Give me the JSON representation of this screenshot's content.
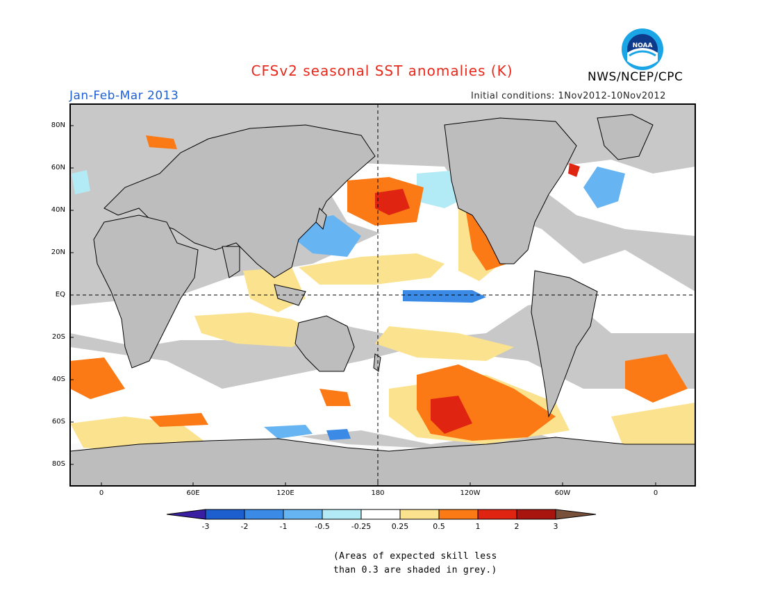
{
  "header": {
    "title": "CFSv2 seasonal SST anomalies (K)",
    "organization": "NWS/NCEP/CPC",
    "season": "Jan-Feb-Mar 2013",
    "initial_conditions": "Initial conditions: 1Nov2012-10Nov2012",
    "logo_text": "NOAA"
  },
  "map": {
    "lat_labels": [
      "80N",
      "60N",
      "40N",
      "20N",
      "EQ",
      "20S",
      "40S",
      "60S",
      "80S"
    ],
    "lon_labels": [
      "0",
      "60E",
      "120E",
      "180",
      "120W",
      "60W",
      "0"
    ],
    "reference_lines": [
      "equator",
      "dateline"
    ],
    "grey_meaning": "Areas of expected skill less than 0.3"
  },
  "colorbar": {
    "labels": [
      "-3",
      "-2",
      "-1",
      "-0.5",
      "-0.25",
      "0.25",
      "0.5",
      "1",
      "2",
      "3"
    ],
    "colors": [
      "#3b1fa3",
      "#1e5fd0",
      "#3a8ae6",
      "#67b4f2",
      "#b2ebf5",
      "#ffffff",
      "#fbe28e",
      "#fb7a16",
      "#e02412",
      "#a8150f",
      "#79503a"
    ]
  },
  "colors": {
    "land": "#bdbdbd",
    "low_skill": "#c8c8c8",
    "title": "#e8281a",
    "season": "#1d5fd4"
  },
  "footnote": {
    "line1": "(Areas of expected skill less",
    "line2": "than 0.3 are shaded in grey.)"
  }
}
